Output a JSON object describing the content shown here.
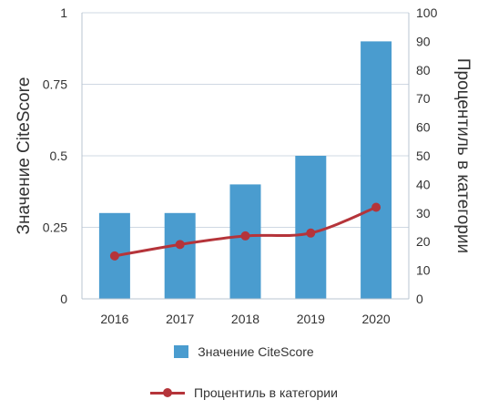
{
  "chart_data": {
    "type": "bar+line",
    "categories": [
      "2016",
      "2017",
      "2018",
      "2019",
      "2020"
    ],
    "series": [
      {
        "name": "Значение CiteScore",
        "type": "bar",
        "axis": "left",
        "values": [
          0.3,
          0.3,
          0.4,
          0.5,
          0.9
        ],
        "color": "#4a9ccf"
      },
      {
        "name": "Процентиль в категории",
        "type": "line",
        "axis": "right",
        "values": [
          15,
          19,
          22,
          23,
          32
        ],
        "color": "#b5343a"
      }
    ],
    "ylabel_left": "Значение CiteScore",
    "ylabel_right": "Процентиль в категории",
    "ylim_left": [
      0,
      1
    ],
    "ylim_right": [
      0,
      100
    ],
    "yticks_left": [
      "0",
      "0.25",
      "0.5",
      "0.75",
      "1"
    ],
    "yticks_right": [
      "0",
      "10",
      "20",
      "30",
      "40",
      "50",
      "60",
      "70",
      "80",
      "90",
      "100"
    ],
    "grid": true,
    "legend_position": "bottom"
  }
}
